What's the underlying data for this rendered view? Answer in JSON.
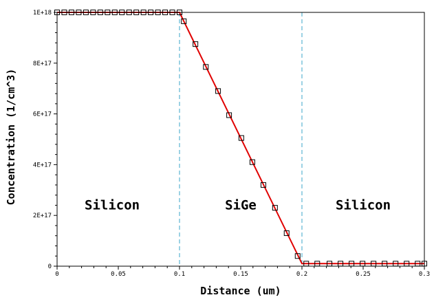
{
  "chart_data": {
    "type": "line",
    "xlabel": "Distance (um)",
    "ylabel": "Concentration (1/cm^3)",
    "xlim": [
      0,
      0.3
    ],
    "ylim": [
      0,
      1e+18
    ],
    "x_ticks": [
      0,
      0.05,
      0.1,
      0.15,
      0.2,
      0.25,
      0.3
    ],
    "x_tick_labels": [
      "0",
      "0.05",
      "0.1",
      "0.15",
      "0.2",
      "0.25",
      "0.3"
    ],
    "y_ticks": [
      0,
      2e+17,
      4e+17,
      6e+17,
      8e+17,
      1e+18
    ],
    "y_tick_labels": [
      "0",
      "2E+17",
      "4E+17",
      "6E+17",
      "8E+17",
      "1E+18"
    ],
    "grid": false,
    "series": [
      {
        "style": "line",
        "color": "#e00000",
        "x": [
          0,
          0.1,
          0.2,
          0.3
        ],
        "y": [
          1e+18,
          1e+18,
          1e+16,
          1e+16
        ]
      },
      {
        "style": "markers",
        "marker": "open-square",
        "color": "#000000",
        "x": [
          0,
          0.00588,
          0.01176,
          0.01765,
          0.02353,
          0.02941,
          0.03529,
          0.04118,
          0.04706,
          0.05294,
          0.05882,
          0.06471,
          0.07059,
          0.07647,
          0.08235,
          0.08824,
          0.09412,
          0.1,
          0.1035,
          0.113,
          0.1215,
          0.1315,
          0.1405,
          0.1505,
          0.1595,
          0.1685,
          0.178,
          0.1875,
          0.1965,
          0.2035,
          0.2125,
          0.2225,
          0.2315,
          0.2405,
          0.2495,
          0.2585,
          0.2675,
          0.2765,
          0.2855,
          0.2945,
          0.3
        ],
        "y": [
          1e+18,
          1e+18,
          1e+18,
          1e+18,
          1e+18,
          1e+18,
          1e+18,
          1e+18,
          1e+18,
          1e+18,
          1e+18,
          1e+18,
          1e+18,
          1e+18,
          1e+18,
          1e+18,
          1e+18,
          1e+18,
          9.65e+17,
          8.75e+17,
          7.85e+17,
          6.9e+17,
          5.95e+17,
          5.05e+17,
          4.1e+17,
          3.2e+17,
          2.3e+17,
          1.3e+17,
          4e+16,
          1e+16,
          1e+16,
          1e+16,
          1e+16,
          1e+16,
          1e+16,
          1e+16,
          1e+16,
          1e+16,
          1e+16,
          1e+16,
          1e+16
        ]
      }
    ],
    "boundaries": {
      "x": [
        0.1,
        0.2
      ],
      "color": "#3aa6c8",
      "style": "dashed"
    },
    "annotations": [
      {
        "text": "Silicon",
        "x": 0.045,
        "y": 2.4e+17
      },
      {
        "text": "SiGe",
        "x": 0.15,
        "y": 2.4e+17
      },
      {
        "text": "Silicon",
        "x": 0.25,
        "y": 2.4e+17
      }
    ]
  }
}
